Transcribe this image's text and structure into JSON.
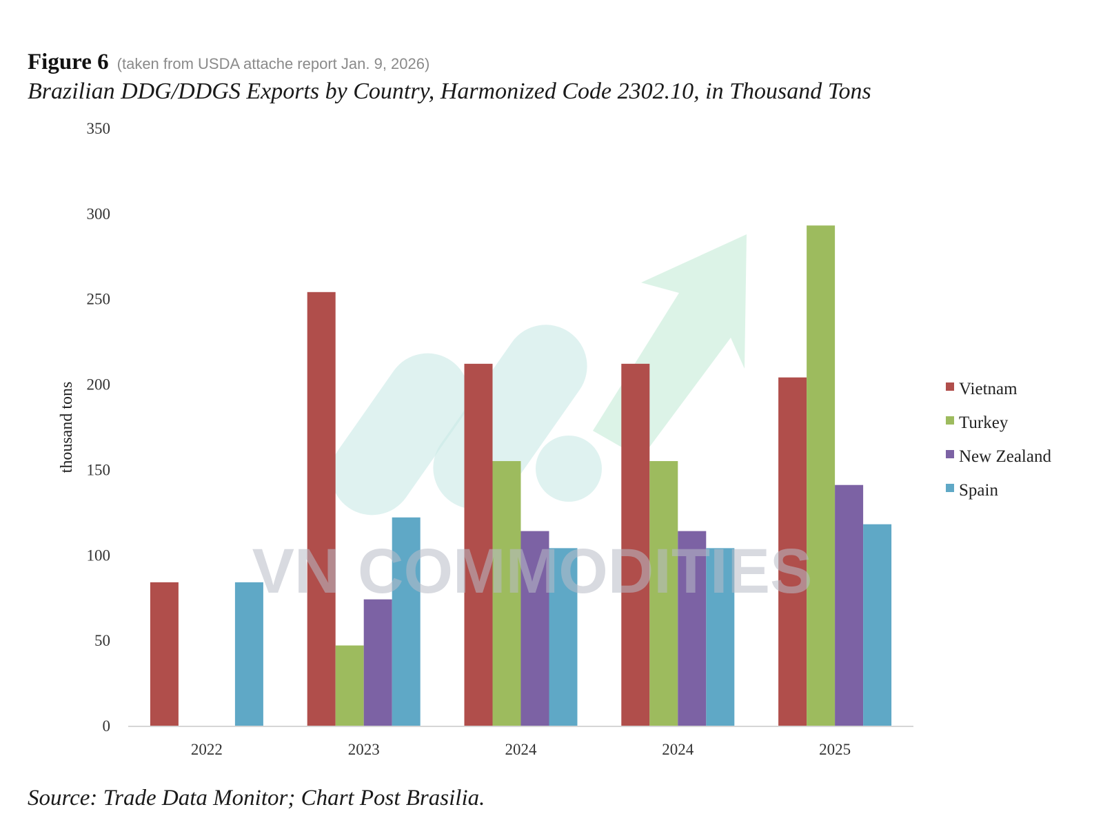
{
  "figure": {
    "label": "Figure 6",
    "note": "(taken from USDA attache report Jan. 9, 2026)",
    "title": "Brazilian DDG/DDGS Exports by Country, Harmonized Code 2302.10, in Thousand Tons",
    "source": "Source: Trade Data Monitor; Chart Post Brasilia."
  },
  "watermark": {
    "text": "VN COMMODITIES",
    "colors": {
      "arrow": "#cdeedd",
      "shapes": "#c9e9e6",
      "text": "#b9bcc8"
    }
  },
  "chart_data": {
    "type": "bar",
    "categories": [
      "2022",
      "2023",
      "2024",
      "2024",
      "2025"
    ],
    "series": [
      {
        "name": "Vietnam",
        "color": "#b04e4b",
        "values": [
          84,
          254,
          212,
          212,
          204
        ]
      },
      {
        "name": "Turkey",
        "color": "#9dbb5e",
        "values": [
          0,
          47,
          155,
          155,
          293
        ]
      },
      {
        "name": "New Zealand",
        "color": "#7c62a4",
        "values": [
          0,
          74,
          114,
          114,
          141
        ]
      },
      {
        "name": "Spain",
        "color": "#5fa8c6",
        "values": [
          84,
          122,
          104,
          104,
          118
        ]
      }
    ],
    "ylabel": "thousand tons",
    "xlabel": "",
    "ylim": [
      0,
      350
    ],
    "yticks": [
      0,
      50,
      100,
      150,
      200,
      250,
      300,
      350
    ],
    "grid": false,
    "legend": "right"
  }
}
